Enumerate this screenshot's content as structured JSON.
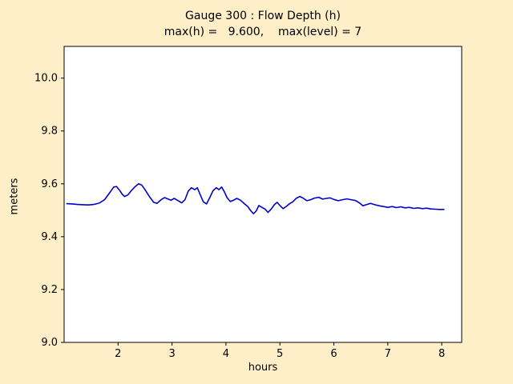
{
  "figure": {
    "background_color": "#FFEFC9",
    "plot_background_color": "#FFFFFF",
    "frame_color": "#000000"
  },
  "chart_data": {
    "type": "line",
    "title": "Gauge 300 : Flow Depth (h)",
    "subtitle": "max(h) =   9.600,    max(level) = 7",
    "xlabel": "hours",
    "ylabel": "meters",
    "xlim": [
      1.0,
      8.37
    ],
    "ylim": [
      9.0,
      10.12
    ],
    "xticks": [
      2,
      3,
      4,
      5,
      6,
      7,
      8
    ],
    "yticks": [
      9.0,
      9.2,
      9.4,
      9.6,
      9.8,
      10.0
    ],
    "grid": false,
    "legend": "none",
    "annotations": {
      "max_h": 9.6,
      "max_level": 7
    },
    "series": [
      {
        "name": "flow-depth-h",
        "color": "#0000CD",
        "points": [
          [
            1.05,
            9.525
          ],
          [
            1.15,
            9.524
          ],
          [
            1.25,
            9.522
          ],
          [
            1.35,
            9.521
          ],
          [
            1.45,
            9.52
          ],
          [
            1.55,
            9.522
          ],
          [
            1.65,
            9.527
          ],
          [
            1.75,
            9.54
          ],
          [
            1.85,
            9.568
          ],
          [
            1.92,
            9.588
          ],
          [
            1.97,
            9.59
          ],
          [
            2.02,
            9.578
          ],
          [
            2.08,
            9.56
          ],
          [
            2.12,
            9.552
          ],
          [
            2.18,
            9.558
          ],
          [
            2.25,
            9.575
          ],
          [
            2.32,
            9.59
          ],
          [
            2.38,
            9.6
          ],
          [
            2.44,
            9.595
          ],
          [
            2.5,
            9.578
          ],
          [
            2.58,
            9.552
          ],
          [
            2.66,
            9.53
          ],
          [
            2.72,
            9.526
          ],
          [
            2.8,
            9.54
          ],
          [
            2.86,
            9.548
          ],
          [
            2.92,
            9.543
          ],
          [
            2.98,
            9.538
          ],
          [
            3.04,
            9.545
          ],
          [
            3.1,
            9.538
          ],
          [
            3.18,
            9.528
          ],
          [
            3.24,
            9.54
          ],
          [
            3.3,
            9.572
          ],
          [
            3.36,
            9.585
          ],
          [
            3.42,
            9.578
          ],
          [
            3.47,
            9.585
          ],
          [
            3.52,
            9.56
          ],
          [
            3.58,
            9.532
          ],
          [
            3.64,
            9.524
          ],
          [
            3.7,
            9.548
          ],
          [
            3.76,
            9.574
          ],
          [
            3.82,
            9.585
          ],
          [
            3.87,
            9.578
          ],
          [
            3.92,
            9.588
          ],
          [
            3.97,
            9.57
          ],
          [
            4.02,
            9.548
          ],
          [
            4.08,
            9.533
          ],
          [
            4.14,
            9.538
          ],
          [
            4.2,
            9.545
          ],
          [
            4.27,
            9.538
          ],
          [
            4.34,
            9.525
          ],
          [
            4.4,
            9.515
          ],
          [
            4.46,
            9.498
          ],
          [
            4.51,
            9.487
          ],
          [
            4.56,
            9.497
          ],
          [
            4.61,
            9.518
          ],
          [
            4.66,
            9.512
          ],
          [
            4.72,
            9.505
          ],
          [
            4.78,
            9.492
          ],
          [
            4.84,
            9.505
          ],
          [
            4.9,
            9.522
          ],
          [
            4.95,
            9.53
          ],
          [
            5.0,
            9.518
          ],
          [
            5.06,
            9.506
          ],
          [
            5.12,
            9.515
          ],
          [
            5.18,
            9.525
          ],
          [
            5.24,
            9.532
          ],
          [
            5.3,
            9.545
          ],
          [
            5.37,
            9.552
          ],
          [
            5.43,
            9.546
          ],
          [
            5.5,
            9.536
          ],
          [
            5.57,
            9.54
          ],
          [
            5.64,
            9.546
          ],
          [
            5.72,
            9.549
          ],
          [
            5.79,
            9.542
          ],
          [
            5.86,
            9.545
          ],
          [
            5.93,
            9.547
          ],
          [
            6.0,
            9.541
          ],
          [
            6.08,
            9.536
          ],
          [
            6.16,
            9.54
          ],
          [
            6.24,
            9.543
          ],
          [
            6.32,
            9.54
          ],
          [
            6.4,
            9.537
          ],
          [
            6.48,
            9.527
          ],
          [
            6.54,
            9.517
          ],
          [
            6.6,
            9.521
          ],
          [
            6.68,
            9.526
          ],
          [
            6.76,
            9.521
          ],
          [
            6.84,
            9.517
          ],
          [
            6.92,
            9.514
          ],
          [
            7.0,
            9.511
          ],
          [
            7.08,
            9.514
          ],
          [
            7.16,
            9.51
          ],
          [
            7.24,
            9.513
          ],
          [
            7.32,
            9.509
          ],
          [
            7.4,
            9.511
          ],
          [
            7.48,
            9.507
          ],
          [
            7.56,
            9.509
          ],
          [
            7.64,
            9.506
          ],
          [
            7.72,
            9.508
          ],
          [
            7.8,
            9.505
          ],
          [
            7.88,
            9.504
          ],
          [
            7.96,
            9.503
          ],
          [
            8.04,
            9.503
          ]
        ]
      }
    ]
  }
}
